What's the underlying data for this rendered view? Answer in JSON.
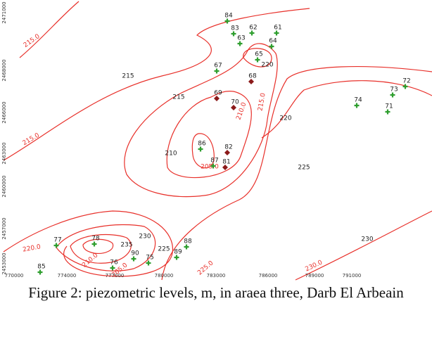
{
  "figure": {
    "contour_labels": [
      {
        "text": "215.0",
        "color": "#e8302a"
      },
      {
        "text": "215",
        "color": "#222"
      },
      {
        "text": "215",
        "color": "#222"
      },
      {
        "text": "220",
        "color": "#222"
      },
      {
        "text": "215.0",
        "color": "#e8302a"
      },
      {
        "text": "210.0",
        "color": "#e8302a"
      },
      {
        "text": "220",
        "color": "#222"
      },
      {
        "text": "215.0",
        "color": "#e8302a"
      },
      {
        "text": "210",
        "color": "#222"
      },
      {
        "text": "205.0",
        "color": "#e8302a"
      },
      {
        "text": "225",
        "color": "#222"
      },
      {
        "text": "230",
        "color": "#222"
      },
      {
        "text": "235",
        "color": "#222"
      },
      {
        "text": "225",
        "color": "#222"
      },
      {
        "text": "220.0",
        "color": "#e8302a"
      },
      {
        "text": "210.0",
        "color": "#e8302a"
      },
      {
        "text": "205.0",
        "color": "#e8302a"
      },
      {
        "text": "230",
        "color": "#222"
      },
      {
        "text": "225.0",
        "color": "#e8302a"
      },
      {
        "text": "230.0",
        "color": "#e8302a"
      }
    ],
    "wells": [
      {
        "label": "84",
        "color": "#2e9e2e"
      },
      {
        "label": "83",
        "color": "#2e9e2e"
      },
      {
        "label": "62",
        "color": "#2e9e2e"
      },
      {
        "label": "61",
        "color": "#2e9e2e"
      },
      {
        "label": "63",
        "color": "#2e9e2e"
      },
      {
        "label": "64",
        "color": "#2e9e2e"
      },
      {
        "label": "65",
        "color": "#2e9e2e"
      },
      {
        "label": "67",
        "color": "#2e9e2e"
      },
      {
        "label": "68",
        "color": "#8b1a1a"
      },
      {
        "label": "69",
        "color": "#8b1a1a"
      },
      {
        "label": "70",
        "color": "#8b1a1a"
      },
      {
        "label": "74",
        "color": "#2e9e2e"
      },
      {
        "label": "71",
        "color": "#2e9e2e"
      },
      {
        "label": "73",
        "color": "#2e9e2e"
      },
      {
        "label": "72",
        "color": "#2e9e2e"
      },
      {
        "label": "86",
        "color": "#2e9e2e"
      },
      {
        "label": "82",
        "color": "#8b1a1a"
      },
      {
        "label": "87",
        "color": "#2e9e2e"
      },
      {
        "label": "81",
        "color": "#8b1a1a"
      },
      {
        "label": "77",
        "color": "#2e9e2e"
      },
      {
        "label": "78",
        "color": "#2e9e2e"
      },
      {
        "label": "88",
        "color": "#2e9e2e"
      },
      {
        "label": "89",
        "color": "#2e9e2e"
      },
      {
        "label": "90",
        "color": "#2e9e2e"
      },
      {
        "label": "75",
        "color": "#2e9e2e"
      },
      {
        "label": "76",
        "color": "#2e9e2e"
      },
      {
        "label": "85",
        "color": "#2e9e2e"
      }
    ],
    "x_ticks": [
      "770000",
      "774000",
      "777000",
      "780000",
      "783000",
      "786000",
      "789000",
      "791000"
    ],
    "y_ticks": [
      "2471000",
      "2468000",
      "2466000",
      "2463000",
      "2460000",
      "2457000",
      "2453000"
    ],
    "caption": "Figure 2: piezometric levels, m, in araea three, Darb El Arbeain"
  }
}
